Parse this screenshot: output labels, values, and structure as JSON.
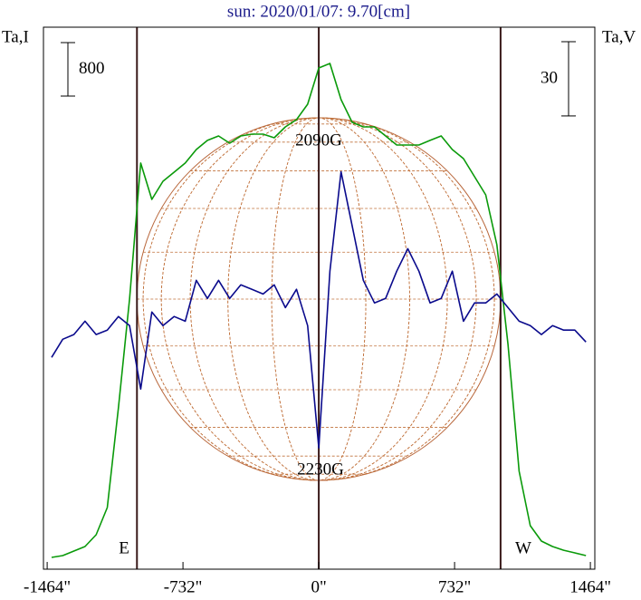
{
  "chart_data": {
    "type": "line",
    "title": "sun: 2020/01/07: 9.70[cm]",
    "y_label": "Ta,I",
    "y2_label": "Ta,V",
    "x": [
      -1440,
      -1380,
      -1320,
      -1260,
      -1200,
      -1140,
      -1080,
      -1020,
      -960,
      -900,
      -840,
      -780,
      -720,
      -660,
      -600,
      -540,
      -480,
      -420,
      -360,
      -300,
      -240,
      -180,
      -120,
      -60,
      0,
      60,
      120,
      180,
      240,
      300,
      360,
      420,
      480,
      540,
      600,
      660,
      720,
      780,
      840,
      900,
      960,
      1020,
      1080,
      1140,
      1200,
      1260,
      1320,
      1380,
      1440
    ],
    "series": [
      {
        "name": "Ta,I",
        "color": "#0a9a0a",
        "axis": "y",
        "values": [
          0,
          27,
          95,
          163,
          339,
          746,
          2237,
          3865,
          5899,
          5356,
          5627,
          5763,
          5899,
          6102,
          6238,
          6305,
          6197,
          6305,
          6332,
          6332,
          6278,
          6441,
          6549,
          6780,
          7322,
          7390,
          6848,
          6509,
          6441,
          6441,
          6305,
          6170,
          6170,
          6170,
          6238,
          6305,
          6102,
          5966,
          5695,
          5424,
          4678,
          3187,
          1288,
          475,
          244,
          163,
          108,
          68,
          27
        ]
      },
      {
        "name": "Ta,V",
        "color": "#0a0a8c",
        "axis": "y2",
        "values": [
          -4.4,
          2.9,
          4.8,
          10.2,
          4.8,
          6.6,
          12.1,
          8.4,
          -17.2,
          13.9,
          8.4,
          12.1,
          10.2,
          26.7,
          19.4,
          26.7,
          19.4,
          24.9,
          23.1,
          21.2,
          24.9,
          15.7,
          23.1,
          8.4,
          -41.0,
          30.4,
          70.6,
          48.7,
          26.7,
          17.6,
          19.4,
          30.4,
          39.5,
          30.4,
          17.6,
          19.4,
          30.4,
          10.2,
          17.6,
          17.6,
          21.2,
          15.7,
          10.2,
          8.4,
          4.8,
          8.4,
          6.6,
          6.6,
          1.8
        ]
      }
    ],
    "xlim": [
      -1484,
      1488
    ],
    "xticks": [
      {
        "value": -1464,
        "label": "-1464\""
      },
      {
        "value": -732,
        "label": "-732\""
      },
      {
        "value": 0,
        "label": "0\""
      },
      {
        "value": 732,
        "label": "732\""
      },
      {
        "value": 1464,
        "label": "1464\""
      }
    ],
    "ylim": [
      -176,
      7932
    ],
    "y2lim": [
      -90,
      129
    ],
    "scale_bars": [
      {
        "value": 800,
        "label": "800",
        "axis": "y"
      },
      {
        "value": 30,
        "label": "30",
        "axis": "y2"
      }
    ],
    "disk_radius": 980,
    "limb_labels": [
      "E",
      "W"
    ],
    "annotations": [
      "2090G",
      "2230G"
    ]
  }
}
